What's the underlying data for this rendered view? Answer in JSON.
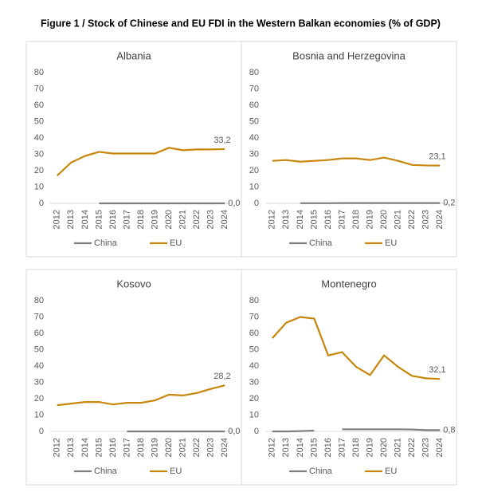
{
  "title": "Figure 1 / Stock of Chinese and EU FDI in the Western Balkan economies (% of GDP)",
  "chart_data": [
    {
      "type": "line",
      "title": "Albania",
      "categories": [
        "2012",
        "2013",
        "2014",
        "2015",
        "2016",
        "2017",
        "2018",
        "2019",
        "2020",
        "2021",
        "2022",
        "2023",
        "2024"
      ],
      "ylim": [
        0,
        80
      ],
      "yticks": [
        0,
        10,
        20,
        30,
        40,
        50,
        60,
        70,
        80
      ],
      "series": [
        {
          "name": "China",
          "color": "#7f7f7f",
          "values": [
            null,
            null,
            null,
            0,
            0,
            0,
            0,
            0,
            0,
            0,
            0,
            0,
            0
          ],
          "value_labels": [
            null,
            null,
            null,
            null,
            null,
            null,
            null,
            null,
            null,
            null,
            null,
            null,
            "0,0"
          ]
        },
        {
          "name": "EU",
          "color": "#c8860b",
          "values": [
            17,
            25,
            29,
            31.5,
            30.5,
            30.5,
            30.5,
            30.5,
            34,
            32.5,
            33,
            33,
            33.2
          ],
          "value_labels": [
            null,
            null,
            null,
            null,
            null,
            null,
            null,
            null,
            null,
            null,
            null,
            null,
            "33,2"
          ]
        }
      ]
    },
    {
      "type": "line",
      "title": "Bosnia and Herzegovina",
      "categories": [
        "2012",
        "2013",
        "2014",
        "2015",
        "2016",
        "2017",
        "2018",
        "2019",
        "2020",
        "2021",
        "2022",
        "2023",
        "2024"
      ],
      "ylim": [
        0,
        80
      ],
      "yticks": [
        0,
        10,
        20,
        30,
        40,
        50,
        60,
        70,
        80
      ],
      "series": [
        {
          "name": "China",
          "color": "#7f7f7f",
          "values": [
            null,
            null,
            0.1,
            0.1,
            0.1,
            0.2,
            0.2,
            0.2,
            0.2,
            0.2,
            0.2,
            0.2,
            0.2
          ],
          "value_labels": [
            null,
            null,
            null,
            null,
            null,
            null,
            null,
            null,
            null,
            null,
            null,
            null,
            "0,2"
          ]
        },
        {
          "name": "EU",
          "color": "#c8860b",
          "values": [
            26,
            26.5,
            25.5,
            26,
            26.5,
            27.5,
            27.5,
            26.5,
            28,
            26,
            23.5,
            23.2,
            23.1
          ],
          "value_labels": [
            null,
            null,
            null,
            null,
            null,
            null,
            null,
            null,
            null,
            null,
            null,
            null,
            "23,1"
          ]
        }
      ]
    },
    {
      "type": "line",
      "title": "Kosovo",
      "categories": [
        "2012",
        "2013",
        "2014",
        "2015",
        "2016",
        "2017",
        "2018",
        "2019",
        "2020",
        "2021",
        "2022",
        "2023",
        "2024"
      ],
      "ylim": [
        0,
        80
      ],
      "yticks": [
        0,
        10,
        20,
        30,
        40,
        50,
        60,
        70,
        80
      ],
      "series": [
        {
          "name": "China",
          "color": "#7f7f7f",
          "values": [
            null,
            null,
            null,
            null,
            null,
            0,
            0,
            0,
            0,
            0,
            0,
            0,
            0
          ],
          "value_labels": [
            null,
            null,
            null,
            null,
            null,
            null,
            null,
            null,
            null,
            null,
            null,
            null,
            "0,0"
          ]
        },
        {
          "name": "EU",
          "color": "#c8860b",
          "values": [
            16,
            17,
            18,
            18,
            16.5,
            17.5,
            17.5,
            19,
            22.5,
            22,
            23.5,
            26,
            28.2
          ],
          "value_labels": [
            null,
            null,
            null,
            null,
            null,
            null,
            null,
            null,
            null,
            null,
            null,
            null,
            "28,2"
          ]
        }
      ]
    },
    {
      "type": "line",
      "title": "Montenegro",
      "categories": [
        "2012",
        "2013",
        "2014",
        "2015",
        "2016",
        "2017",
        "2018",
        "2019",
        "2020",
        "2021",
        "2022",
        "2023",
        "2024"
      ],
      "ylim": [
        0,
        80
      ],
      "yticks": [
        0,
        10,
        20,
        30,
        40,
        50,
        60,
        70,
        80
      ],
      "series": [
        {
          "name": "China",
          "color": "#7f7f7f",
          "values": [
            0,
            0,
            0.2,
            0.5,
            null,
            1.3,
            1.3,
            1.3,
            1.3,
            1.3,
            1.2,
            0.8,
            0.8
          ],
          "value_labels": [
            null,
            null,
            null,
            null,
            null,
            null,
            null,
            null,
            null,
            null,
            null,
            null,
            "0,8"
          ]
        },
        {
          "name": "EU",
          "color": "#c8860b",
          "values": [
            57,
            66.5,
            70,
            69,
            46.5,
            48.5,
            39.5,
            34.5,
            46.5,
            39.5,
            34,
            32.5,
            32.1
          ],
          "value_labels": [
            null,
            null,
            null,
            null,
            null,
            null,
            null,
            null,
            null,
            null,
            null,
            null,
            "32,1"
          ]
        }
      ]
    }
  ]
}
